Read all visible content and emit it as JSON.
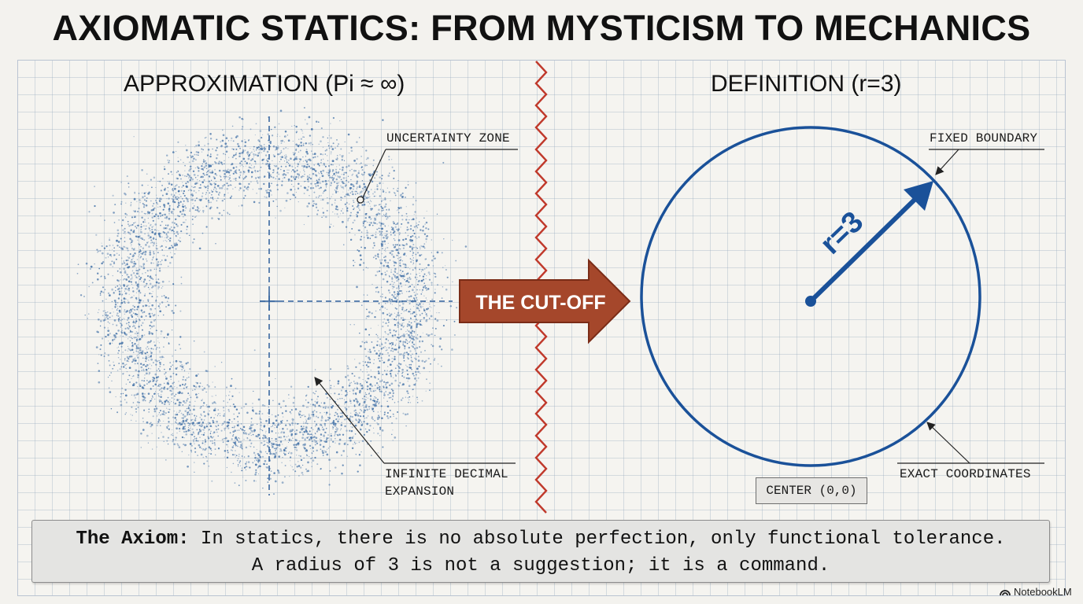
{
  "title": "AXIOMATIC STATICS: FROM MYSTICISM TO MECHANICS",
  "left_panel": {
    "heading": "APPROXIMATION (Pi ≈ ∞)",
    "callout_top": "UNCERTAINTY ZONE",
    "callout_bottom_line1": "INFINITE DECIMAL",
    "callout_bottom_line2": "EXPANSION"
  },
  "divider_arrow": {
    "label": "THE CUT-OFF"
  },
  "right_panel": {
    "heading": "DEFINITION (r=3)",
    "radius_label": "r=3",
    "callout_top": "FIXED BOUNDARY",
    "callout_bottom": "EXACT COORDINATES",
    "center_label": "CENTER (0,0)"
  },
  "axiom": {
    "label": "The Axiom:",
    "line1_rest": " In statics, there is no absolute perfection, only functional tolerance.",
    "line2": "A radius of 3 is not a suggestion; it is a command."
  },
  "brand": {
    "name": "NotebookLM",
    "icon": "notebooklm-logo-icon"
  },
  "colors": {
    "scatter_blue": "#3f6fa6",
    "circle_blue": "#1a5199",
    "cut_line_red": "#c0392b",
    "arrow_fill": "#a5472b",
    "arrow_border": "#7a2c17"
  }
}
